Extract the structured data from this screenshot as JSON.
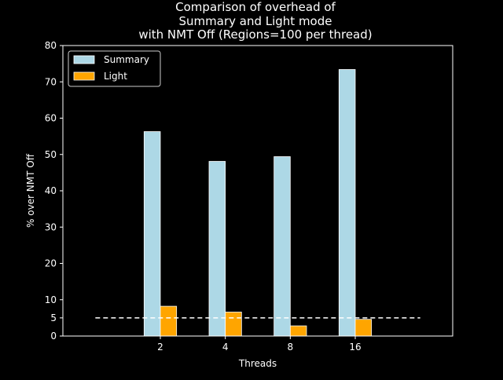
{
  "colors": {
    "background": "#000000",
    "foreground": "#ffffff",
    "summary": "#add8e6",
    "light": "#ffa500",
    "threshold": "#ffffff"
  },
  "chart_data": {
    "type": "bar",
    "title_lines": [
      "Comparison of overhead of",
      "Summary and Light mode",
      "with NMT Off (Regions=100 per thread)"
    ],
    "xlabel": "Threads",
    "ylabel": "% over NMT Off",
    "categories": [
      "2",
      "4",
      "8",
      "16"
    ],
    "series": [
      {
        "name": "Summary",
        "values": [
          56.3,
          48.1,
          49.4,
          73.4
        ]
      },
      {
        "name": "Light",
        "values": [
          8.2,
          6.6,
          2.8,
          4.6
        ]
      }
    ],
    "yticks": [
      0,
      5,
      10,
      20,
      30,
      40,
      50,
      60,
      70,
      80
    ],
    "ylim": [
      0,
      80
    ],
    "reference_line": {
      "value": 5,
      "style": "dashed"
    },
    "legend_position": "top-left",
    "grid": false
  }
}
